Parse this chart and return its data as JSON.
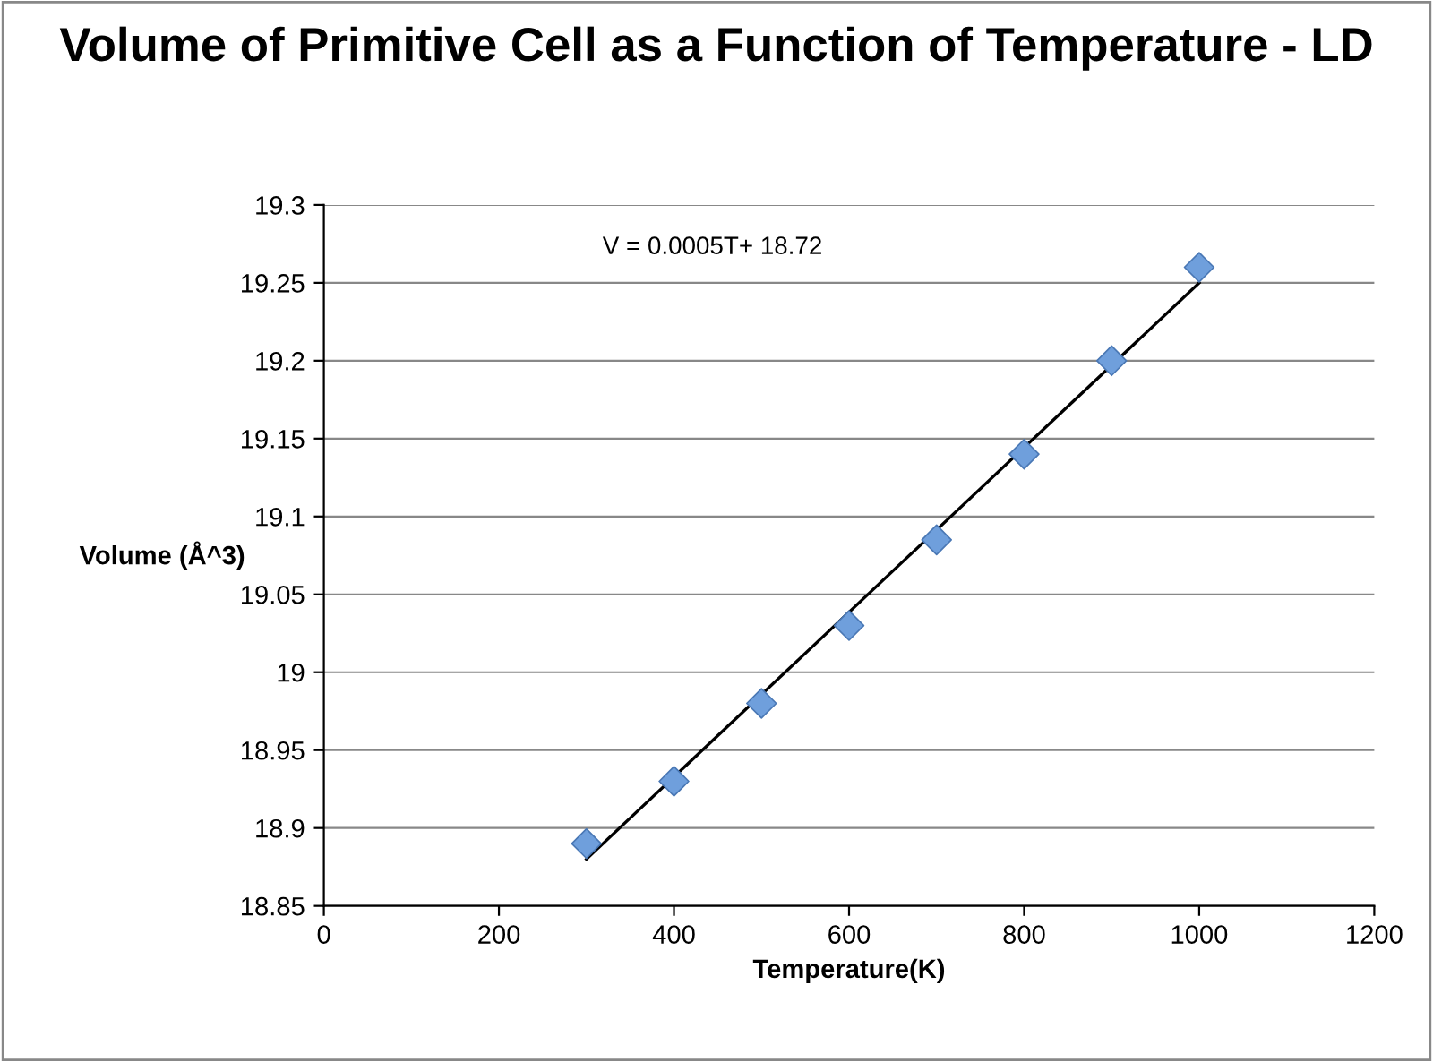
{
  "chart_data": {
    "type": "scatter",
    "title": "Volume of Primitive Cell as a Function of Temperature - LD",
    "xlabel": "Temperature(K)",
    "ylabel": "Volume (Å^3)",
    "x": [
      300,
      400,
      500,
      600,
      700,
      800,
      900,
      1000
    ],
    "series": [
      {
        "color": "#6f9fdc",
        "marker": "diamond",
        "values": [
          18.89,
          18.93,
          18.98,
          19.03,
          19.085,
          19.14,
          19.2,
          19.26
        ]
      },
      {
        "type": "line",
        "color": "#000000",
        "marker": "none",
        "x": [
          300,
          1000
        ],
        "values": [
          18.88,
          19.25
        ]
      }
    ],
    "annotations": [
      "V = 0.0005T+ 18.72"
    ],
    "xlim": [
      0,
      1200
    ],
    "xticks": [
      0,
      200,
      400,
      600,
      800,
      1000,
      1200
    ],
    "ylim": [
      18.85,
      19.3
    ],
    "yticks": [
      18.85,
      18.9,
      18.95,
      19,
      19.05,
      19.1,
      19.15,
      19.2,
      19.25,
      19.3
    ],
    "grid": "y",
    "legend": false
  }
}
